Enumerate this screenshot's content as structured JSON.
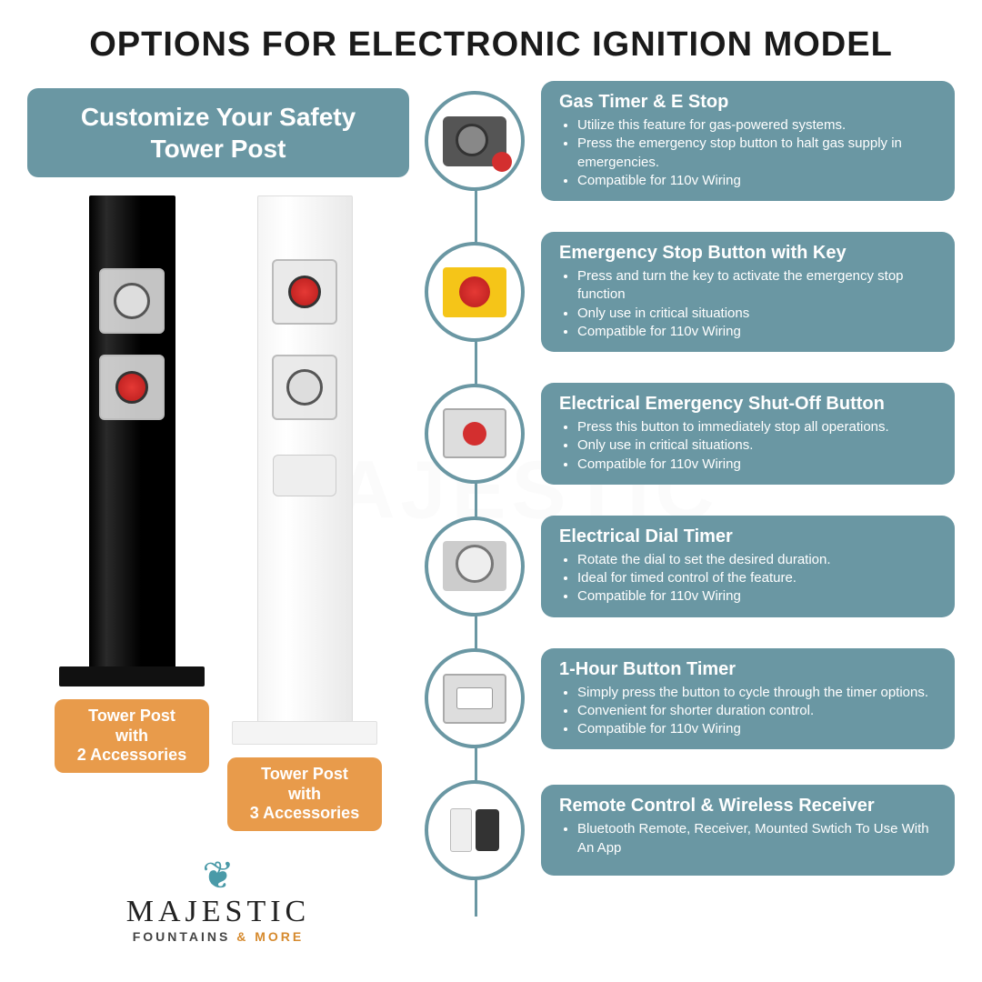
{
  "title": "OPTIONS FOR ELECTRONIC IGNITION MODEL",
  "subhead": "Customize Your Safety Tower Post",
  "colors": {
    "teal": "#6a97a3",
    "orange": "#e89b4b",
    "text": "#1a1a1a"
  },
  "towers": [
    {
      "label_line1": "Tower Post",
      "label_line2": "with",
      "label_line3": "2 Accessories"
    },
    {
      "label_line1": "Tower Post",
      "label_line2": "with",
      "label_line3": "3 Accessories"
    }
  ],
  "logo": {
    "name": "MAJESTIC",
    "sub_pre": "FOUNTAINS ",
    "sub_amp": "& MORE"
  },
  "options": [
    {
      "icon": "timer",
      "title": "Gas Timer & E Stop",
      "bullets": [
        "Utilize this feature for gas-powered systems.",
        "Press the emergency stop button to halt gas supply in emergencies.",
        "Compatible for 110v Wiring"
      ]
    },
    {
      "icon": "estop",
      "title": "Emergency Stop Button with Key",
      "bullets": [
        "Press and turn the key to activate the emergency stop function",
        "Only use in critical situations",
        "Compatible for 110v Wiring"
      ]
    },
    {
      "icon": "shutoff",
      "title": "Electrical Emergency Shut-Off Button",
      "bullets": [
        "Press this button to immediately stop all operations.",
        "Only use in critical situations.",
        "Compatible for 110v Wiring"
      ]
    },
    {
      "icon": "dial",
      "title": "Electrical Dial Timer",
      "bullets": [
        "Rotate the dial to set the desired duration.",
        "Ideal for timed control of the feature.",
        "Compatible for 110v Wiring"
      ]
    },
    {
      "icon": "btntimer",
      "title": "1-Hour Button Timer",
      "bullets": [
        "Simply press the button to cycle through the timer options.",
        "Convenient for shorter duration control.",
        "Compatible for 110v Wiring"
      ]
    },
    {
      "icon": "remote",
      "title": "Remote Control & Wireless Receiver",
      "bullets": [
        "Bluetooth Remote, Receiver, Mounted Swtich To Use With An App"
      ]
    }
  ]
}
